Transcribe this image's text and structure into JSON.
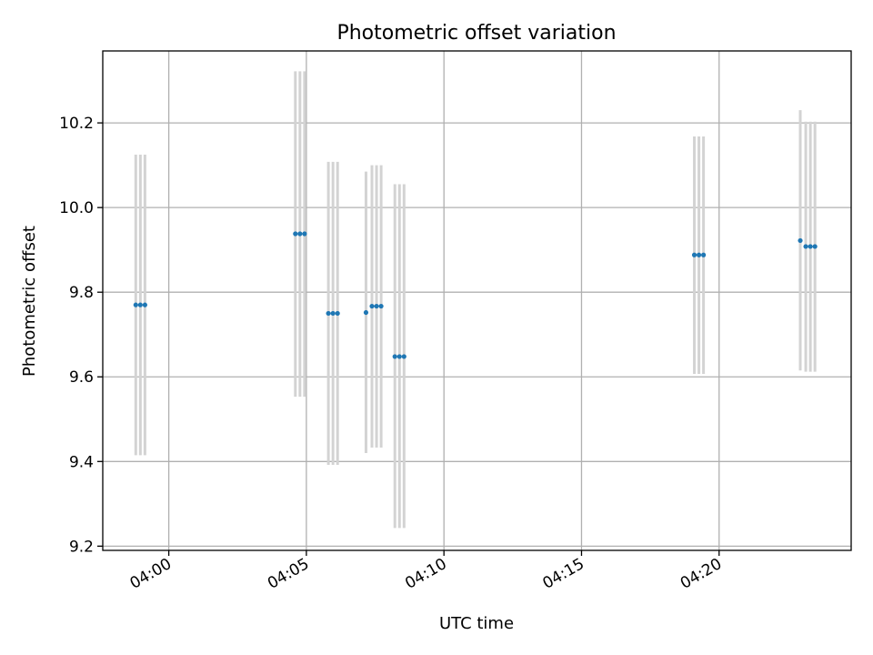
{
  "chart_data": {
    "type": "scatter",
    "title": "Photometric offset variation",
    "xlabel": "UTC time",
    "ylabel": "Photometric offset",
    "x_tick_labels": [
      "04:00",
      "04:05",
      "04:10",
      "04:15",
      "04:20"
    ],
    "x_ticks": [
      "04:00",
      "04:05",
      "04:10",
      "04:15",
      "04:20"
    ],
    "xlim": [
      "03:57:36",
      "04:24:48"
    ],
    "y_tick_labels": [
      "9.2",
      "9.4",
      "9.6",
      "9.8",
      "10.0",
      "10.2"
    ],
    "y_ticks": [
      9.2,
      9.4,
      9.6,
      9.8,
      10.0,
      10.2
    ],
    "ylim": [
      9.19,
      10.37
    ],
    "grid": true,
    "colors": {
      "points": "#1f77b4",
      "errorbars": "#d3d3d3",
      "grid": "#b0b0b0"
    },
    "points": [
      {
        "x": "03:58:48",
        "y": 9.77,
        "yerr_low": 9.415,
        "yerr_high": 10.125
      },
      {
        "x": "03:58:58",
        "y": 9.77,
        "yerr_low": 9.415,
        "yerr_high": 10.125
      },
      {
        "x": "03:59:08",
        "y": 9.77,
        "yerr_low": 9.415,
        "yerr_high": 10.125
      },
      {
        "x": "04:04:36",
        "y": 9.938,
        "yerr_low": 9.553,
        "yerr_high": 10.322
      },
      {
        "x": "04:04:46",
        "y": 9.938,
        "yerr_low": 9.553,
        "yerr_high": 10.322
      },
      {
        "x": "04:04:56",
        "y": 9.938,
        "yerr_low": 9.553,
        "yerr_high": 10.322
      },
      {
        "x": "04:05:48",
        "y": 9.75,
        "yerr_low": 9.392,
        "yerr_high": 10.108
      },
      {
        "x": "04:05:58",
        "y": 9.75,
        "yerr_low": 9.392,
        "yerr_high": 10.108
      },
      {
        "x": "04:06:08",
        "y": 9.75,
        "yerr_low": 9.392,
        "yerr_high": 10.108
      },
      {
        "x": "04:07:10",
        "y": 9.752,
        "yerr_low": 9.42,
        "yerr_high": 10.085
      },
      {
        "x": "04:07:23",
        "y": 9.767,
        "yerr_low": 9.433,
        "yerr_high": 10.1
      },
      {
        "x": "04:07:33",
        "y": 9.767,
        "yerr_low": 9.433,
        "yerr_high": 10.1
      },
      {
        "x": "04:07:43",
        "y": 9.767,
        "yerr_low": 9.433,
        "yerr_high": 10.1
      },
      {
        "x": "04:08:13",
        "y": 9.648,
        "yerr_low": 9.243,
        "yerr_high": 10.055
      },
      {
        "x": "04:08:23",
        "y": 9.648,
        "yerr_low": 9.243,
        "yerr_high": 10.055
      },
      {
        "x": "04:08:33",
        "y": 9.648,
        "yerr_low": 9.243,
        "yerr_high": 10.055
      },
      {
        "x": "04:19:06",
        "y": 9.888,
        "yerr_low": 9.607,
        "yerr_high": 10.168
      },
      {
        "x": "04:19:16",
        "y": 9.888,
        "yerr_low": 9.607,
        "yerr_high": 10.168
      },
      {
        "x": "04:19:26",
        "y": 9.888,
        "yerr_low": 9.607,
        "yerr_high": 10.168
      },
      {
        "x": "04:22:57",
        "y": 9.922,
        "yerr_low": 9.615,
        "yerr_high": 10.23
      },
      {
        "x": "04:23:09",
        "y": 9.908,
        "yerr_low": 9.612,
        "yerr_high": 10.203
      },
      {
        "x": "04:23:19",
        "y": 9.908,
        "yerr_low": 9.612,
        "yerr_high": 10.203
      },
      {
        "x": "04:23:29",
        "y": 9.908,
        "yerr_low": 9.612,
        "yerr_high": 10.203
      }
    ]
  }
}
